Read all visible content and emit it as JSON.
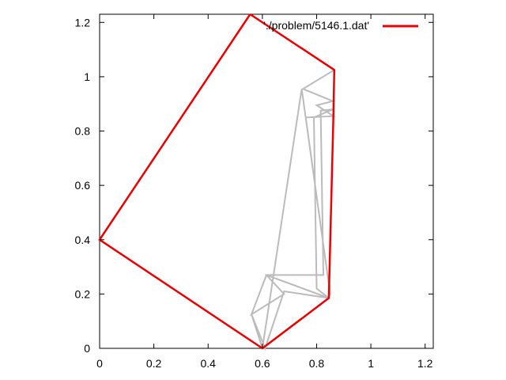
{
  "chart_data": {
    "type": "line",
    "title": "",
    "xlabel": "",
    "ylabel": "",
    "xlim": [
      0,
      1.23
    ],
    "ylim": [
      0,
      1.23
    ],
    "x_ticks": [
      0,
      0.2,
      0.4,
      0.6,
      0.8,
      1,
      1.2
    ],
    "y_ticks": [
      0,
      0.2,
      0.4,
      0.6,
      0.8,
      1,
      1.2
    ],
    "x_tick_labels": [
      "0",
      "0.2",
      "0.4",
      "0.6",
      "0.8",
      "1",
      "1.2"
    ],
    "y_tick_labels": [
      "0",
      "0.2",
      "0.4",
      "0.6",
      "0.8",
      "1",
      "1.2"
    ],
    "grid": false,
    "legend_position": "top-right",
    "series": [
      {
        "name": "'./problem/5146.1.dat'",
        "color": "#ee0000",
        "points": [
          [
            0.555,
            1.23
          ],
          [
            0.865,
            1.025
          ],
          [
            0.862,
            0.855
          ],
          [
            0.845,
            0.185
          ],
          [
            0.6,
            0.0
          ],
          [
            0.0,
            0.4
          ],
          [
            0.555,
            1.23
          ]
        ]
      },
      {
        "name": "",
        "color": "#bbbbbb",
        "points": [
          [
            0.865,
            1.025
          ],
          [
            0.75,
            0.955
          ],
          [
            0.86,
            0.91
          ],
          [
            0.8,
            0.895
          ],
          [
            0.862,
            0.855
          ],
          [
            0.76,
            0.85
          ],
          [
            0.85,
            0.2
          ],
          [
            0.845,
            0.185
          ],
          [
            0.8,
            0.22
          ],
          [
            0.79,
            0.85
          ],
          [
            0.86,
            0.88
          ],
          [
            0.815,
            0.875
          ],
          [
            0.825,
            0.27
          ],
          [
            0.615,
            0.27
          ],
          [
            0.68,
            0.2
          ],
          [
            0.56,
            0.125
          ],
          [
            0.615,
            0.27
          ],
          [
            0.845,
            0.185
          ],
          [
            0.68,
            0.21
          ],
          [
            0.61,
            0.0
          ],
          [
            0.56,
            0.125
          ],
          [
            0.6,
            0.0
          ],
          [
            0.745,
            0.955
          ],
          [
            0.85,
            0.2
          ],
          [
            0.845,
            0.27
          ],
          [
            0.845,
            0.185
          ]
        ]
      }
    ]
  }
}
